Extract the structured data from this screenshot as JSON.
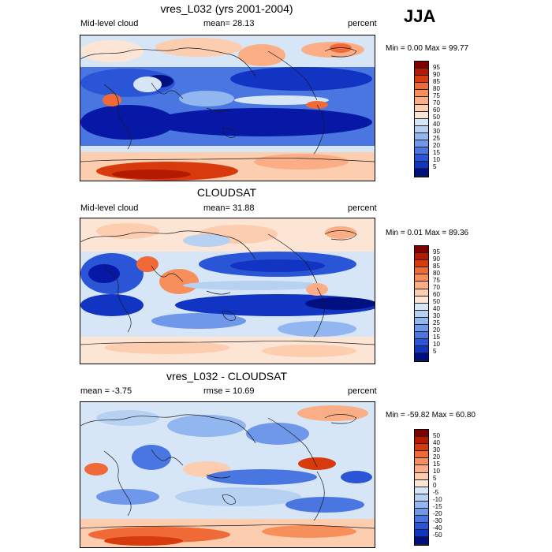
{
  "season": "JJA",
  "colors": {
    "pos": [
      "#7f0000",
      "#b51a00",
      "#d73a0c",
      "#ef6a36",
      "#f78f5c",
      "#fbae85",
      "#fdcdb0",
      "#fde5d6"
    ],
    "neg": [
      "#d6e6f7",
      "#b7d1f3",
      "#92b6f0",
      "#6f97ea",
      "#4a76e2",
      "#2a55d6",
      "#1234c3",
      "#0818a6",
      "#001080"
    ],
    "land": "#1a1a1a"
  },
  "chart_data": [
    {
      "type": "heatmap",
      "title": "vres_L032 (yrs 2001-2004)",
      "left_label": "Mid-level cloud",
      "stat_label": "mean=  28.13",
      "units": "percent",
      "min_max": "Min =   0.00 Max =  99.77",
      "levels": [
        "95",
        "90",
        "85",
        "80",
        "75",
        "70",
        "60",
        "50",
        "40",
        "30",
        "25",
        "20",
        "15",
        "10",
        "5"
      ],
      "variable": "mid-level cloud fraction",
      "mean": 28.13,
      "min": 0.0,
      "max": 99.77
    },
    {
      "type": "heatmap",
      "title": "CLOUDSAT",
      "left_label": "Mid-level cloud",
      "stat_label": "mean=  31.88",
      "units": "percent",
      "min_max": "Min =   0.01 Max =  89.36",
      "levels": [
        "95",
        "90",
        "85",
        "80",
        "75",
        "70",
        "60",
        "50",
        "40",
        "30",
        "25",
        "20",
        "15",
        "10",
        "5"
      ],
      "variable": "mid-level cloud fraction",
      "mean": 31.88,
      "min": 0.01,
      "max": 89.36
    },
    {
      "type": "heatmap",
      "title": "vres_L032 - CLOUDSAT",
      "left_label": "mean =  -3.75",
      "stat_label": "rmse =  10.69",
      "units": "percent",
      "min_max": "Min = -59.82 Max =  60.80",
      "levels": [
        "50",
        "40",
        "30",
        "20",
        "15",
        "10",
        "5",
        "0",
        "-5",
        "-10",
        "-15",
        "-20",
        "-30",
        "-40",
        "-50"
      ],
      "variable": "difference",
      "mean": -3.75,
      "rmse": 10.69,
      "min": -59.82,
      "max": 60.8
    }
  ]
}
